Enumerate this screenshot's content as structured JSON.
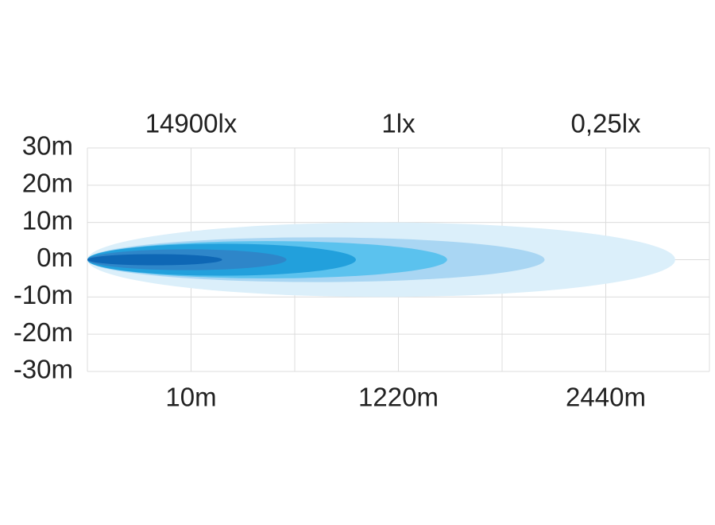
{
  "chart_data": {
    "type": "beam",
    "xlim": [
      0,
      6
    ],
    "xticks": [
      0,
      {
        "value": 1,
        "label": "10m"
      },
      2,
      {
        "value": 3,
        "label": "1220m"
      },
      4,
      {
        "value": 5,
        "label": "2440m"
      },
      6
    ],
    "x2ticks": [
      {
        "value": 1,
        "label": "14900lx"
      },
      {
        "value": 3,
        "label": "1lx"
      },
      {
        "value": 5,
        "label": "0,25lx"
      }
    ],
    "ylim": [
      -30,
      30
    ],
    "yticks": [
      {
        "value": 30,
        "label": "30m"
      },
      {
        "value": 20,
        "label": "20m"
      },
      {
        "value": 10,
        "label": "10m"
      },
      {
        "value": 0,
        "label": "0m"
      },
      {
        "value": -10,
        "label": "-10m"
      },
      {
        "value": -20,
        "label": "-20m"
      },
      {
        "value": -30,
        "label": "-30m"
      }
    ],
    "grid": true,
    "beams": [
      {
        "color": "#dbeffa",
        "length": 5.67,
        "half_width": 10
      },
      {
        "color": "#a9d6f3",
        "length": 4.41,
        "half_width": 6
      },
      {
        "color": "#5bc2ee",
        "length": 3.47,
        "half_width": 5
      },
      {
        "color": "#22a0dc",
        "length": 2.59,
        "half_width": 4.3
      },
      {
        "color": "#2e86c9",
        "length": 1.92,
        "half_width": 2.8
      },
      {
        "color": "#0e67b5",
        "length": 1.3,
        "half_width": 1.5
      }
    ]
  }
}
